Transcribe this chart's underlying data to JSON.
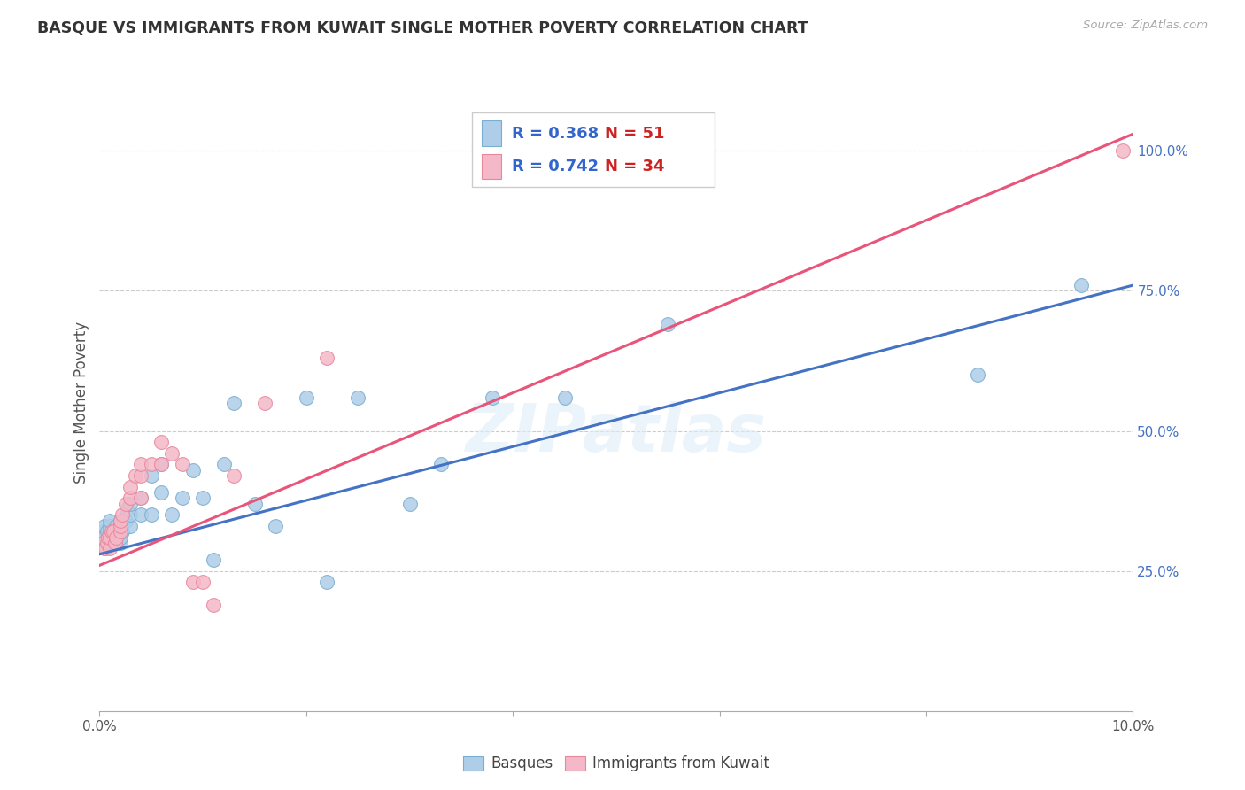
{
  "title": "BASQUE VS IMMIGRANTS FROM KUWAIT SINGLE MOTHER POVERTY CORRELATION CHART",
  "source": "Source: ZipAtlas.com",
  "ylabel_label": "Single Mother Poverty",
  "watermark": "ZIPatlas",
  "basque_R": 0.368,
  "basque_N": 51,
  "kuwait_R": 0.742,
  "kuwait_N": 34,
  "xlim": [
    0.0,
    0.1
  ],
  "ylim": [
    0.0,
    1.1
  ],
  "xticks": [
    0.0,
    0.02,
    0.04,
    0.06,
    0.08,
    0.1
  ],
  "ytick_positions": [
    0.25,
    0.5,
    0.75,
    1.0
  ],
  "ytick_labels": [
    "25.0%",
    "50.0%",
    "75.0%",
    "100.0%"
  ],
  "xtick_labels": [
    "0.0%",
    "",
    "",
    "",
    "",
    "10.0%"
  ],
  "blue_color": "#aecde8",
  "pink_color": "#f4b8c8",
  "blue_edge_color": "#7aaecf",
  "pink_edge_color": "#e8879a",
  "blue_line_color": "#4472c4",
  "pink_line_color": "#e8547a",
  "legend_R_color": "#3366cc",
  "legend_N_color": "#cc2222",
  "grid_color": "#cccccc",
  "background_color": "#ffffff",
  "basque_x": [
    0.0003,
    0.0004,
    0.0005,
    0.0006,
    0.0007,
    0.0008,
    0.001,
    0.001,
    0.001,
    0.001,
    0.0012,
    0.0013,
    0.0014,
    0.0015,
    0.0016,
    0.0018,
    0.002,
    0.002,
    0.002,
    0.002,
    0.0022,
    0.0025,
    0.0026,
    0.003,
    0.003,
    0.003,
    0.004,
    0.004,
    0.005,
    0.005,
    0.006,
    0.006,
    0.007,
    0.008,
    0.009,
    0.01,
    0.011,
    0.012,
    0.013,
    0.015,
    0.017,
    0.02,
    0.022,
    0.025,
    0.03,
    0.033,
    0.038,
    0.045,
    0.055,
    0.085,
    0.095
  ],
  "basque_y": [
    0.32,
    0.31,
    0.33,
    0.3,
    0.32,
    0.31,
    0.31,
    0.32,
    0.33,
    0.34,
    0.3,
    0.31,
    0.31,
    0.32,
    0.33,
    0.32,
    0.3,
    0.31,
    0.33,
    0.34,
    0.32,
    0.34,
    0.36,
    0.33,
    0.35,
    0.37,
    0.35,
    0.38,
    0.35,
    0.42,
    0.39,
    0.44,
    0.35,
    0.38,
    0.43,
    0.38,
    0.27,
    0.44,
    0.55,
    0.37,
    0.33,
    0.56,
    0.23,
    0.56,
    0.37,
    0.44,
    0.56,
    0.56,
    0.69,
    0.6,
    0.76
  ],
  "kuwait_x": [
    0.0003,
    0.0005,
    0.0006,
    0.0007,
    0.0008,
    0.001,
    0.001,
    0.0012,
    0.0013,
    0.0015,
    0.0016,
    0.002,
    0.002,
    0.002,
    0.0022,
    0.0025,
    0.003,
    0.003,
    0.0035,
    0.004,
    0.004,
    0.004,
    0.005,
    0.006,
    0.006,
    0.007,
    0.008,
    0.009,
    0.01,
    0.011,
    0.013,
    0.016,
    0.022,
    0.099
  ],
  "kuwait_y": [
    0.3,
    0.29,
    0.29,
    0.3,
    0.31,
    0.29,
    0.31,
    0.32,
    0.32,
    0.3,
    0.31,
    0.32,
    0.33,
    0.34,
    0.35,
    0.37,
    0.38,
    0.4,
    0.42,
    0.38,
    0.42,
    0.44,
    0.44,
    0.48,
    0.44,
    0.46,
    0.44,
    0.23,
    0.23,
    0.19,
    0.42,
    0.55,
    0.63,
    1.0
  ],
  "basque_line_x": [
    0.0,
    0.1
  ],
  "basque_line_y": [
    0.28,
    0.76
  ],
  "kuwait_line_x": [
    0.0,
    0.1
  ],
  "kuwait_line_y": [
    0.26,
    1.03
  ]
}
